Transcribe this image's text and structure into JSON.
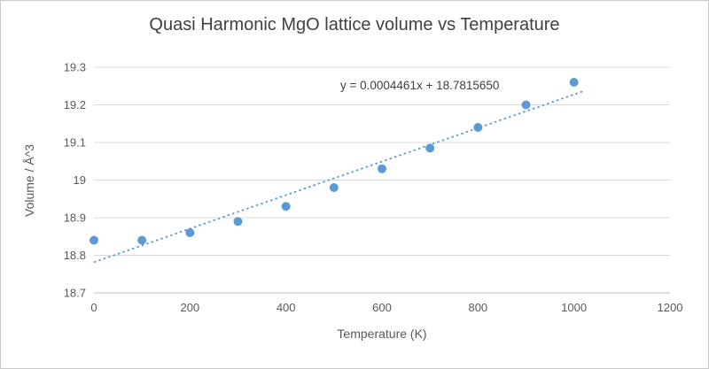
{
  "chart_data": {
    "type": "scatter",
    "title": "Quasi Harmonic MgO lattice volume vs Temperature",
    "xlabel": "Temperature (K)",
    "ylabel": "Volume / Å^3",
    "x": [
      0,
      100,
      200,
      300,
      400,
      500,
      600,
      700,
      800,
      900,
      1000
    ],
    "y": [
      18.84,
      18.84,
      18.86,
      18.89,
      18.93,
      18.98,
      19.03,
      19.085,
      19.14,
      19.2,
      19.26
    ],
    "xlim": [
      0,
      1200
    ],
    "ylim": [
      18.7,
      19.3
    ],
    "x_ticks": [
      "0",
      "200",
      "400",
      "600",
      "800",
      "1000",
      "1200"
    ],
    "y_ticks": [
      "18.7",
      "18.8",
      "18.9",
      "19",
      "19.1",
      "19.2",
      "19.3"
    ],
    "grid": true,
    "legend": "none",
    "trendline": {
      "slope": 0.0004461,
      "intercept": 18.781565,
      "x_start": 0,
      "x_end": 1020,
      "equation_label": "y = 0.0004461x + 18.7815650",
      "style": "dotted"
    },
    "colors": {
      "marker": "#5B9BD5",
      "trendline": "#5B9BD5",
      "gridline": "#D9D9D9",
      "axis_line": "#BFBFBF",
      "tick_text": "#595959",
      "title_text": "#404040"
    }
  }
}
